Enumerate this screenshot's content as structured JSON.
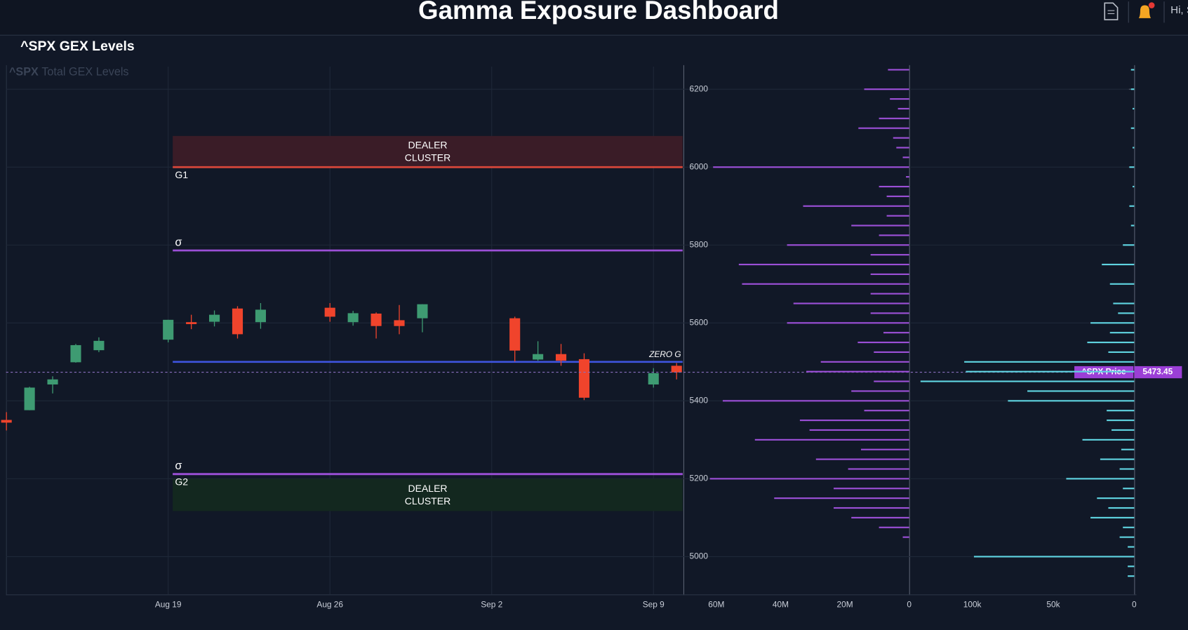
{
  "header": {
    "title": "Gamma Exposure Dashboard",
    "greeting": "Hi, S"
  },
  "panel_title": "^SPX GEX Levels",
  "chart_data": [
    {
      "type": "candlestick",
      "watermark": {
        "symbol": "^SPX",
        "text": "Total GEX Levels"
      },
      "x": [
        "Aug 12",
        "Aug 13",
        "Aug 14",
        "Aug 15",
        "Aug 16",
        "Aug 19",
        "Aug 20",
        "Aug 21",
        "Aug 22",
        "Aug 23",
        "Aug 26",
        "Aug 27",
        "Aug 28",
        "Aug 29",
        "Aug 30",
        "Sep 3",
        "Sep 4",
        "Sep 5",
        "Sep 6",
        "Sep 9",
        "Sep 10"
      ],
      "open": [
        5351,
        5376,
        5442,
        5499,
        5530,
        5557,
        5602,
        5603,
        5637,
        5602,
        5639,
        5602,
        5624,
        5607,
        5612,
        5612,
        5506,
        5520,
        5507,
        5442,
        5490
      ],
      "high": [
        5371,
        5436,
        5463,
        5546,
        5563,
        5608,
        5621,
        5632,
        5643,
        5651,
        5651,
        5631,
        5627,
        5646,
        5648,
        5616,
        5553,
        5546,
        5522,
        5484,
        5497
      ],
      "low": [
        5324,
        5376,
        5419,
        5498,
        5525,
        5550,
        5584,
        5591,
        5560,
        5585,
        5603,
        5593,
        5560,
        5571,
        5576,
        5501,
        5503,
        5490,
        5402,
        5434,
        5455
      ],
      "close": [
        5344,
        5434,
        5455,
        5543,
        5554,
        5608,
        5597,
        5621,
        5571,
        5634,
        5616,
        5625,
        5592,
        5592,
        5648,
        5529,
        5520,
        5503,
        5408,
        5471,
        5473
      ],
      "up_color": "#3e9b72",
      "down_color": "#f0442c",
      "xticks": [
        "Aug 19",
        "Aug 26",
        "Sep 2",
        "Sep 9"
      ],
      "ylim": [
        4903,
        6258
      ],
      "yticks": [
        5000,
        5200,
        5400,
        5600,
        5800,
        6000,
        6200
      ],
      "grid": true,
      "zones": [
        {
          "label": [
            "DEALER",
            "CLUSTER"
          ],
          "from": 6000,
          "to": 6080,
          "color": "#3a1c27"
        },
        {
          "label": [
            "DEALER",
            "CLUSTER"
          ],
          "from": 5117,
          "to": 5200,
          "color": "#13281f"
        }
      ],
      "levels": [
        {
          "label": "G1",
          "value": 6000,
          "color": "#d9473a",
          "label_side": "below"
        },
        {
          "label": "σ",
          "value": 5786,
          "color": "#9b4fd6",
          "label_side": "above"
        },
        {
          "label": "ZERO G",
          "value": 5500,
          "color": "#3f55e0",
          "label_side": "right"
        },
        {
          "label": "σ",
          "value": 5212,
          "color": "#9b4fd6",
          "label_side": "above"
        },
        {
          "label": "G2",
          "value": 5212,
          "color": "#9b4fd6",
          "label_side": "below"
        }
      ],
      "price": {
        "label": "^SPX Price",
        "value": 5473.45,
        "color": "#9b3fd6"
      }
    },
    {
      "type": "hbar",
      "color": "#9b4fd6",
      "y": [
        6250,
        6200,
        6175,
        6150,
        6125,
        6100,
        6075,
        6050,
        6025,
        6000,
        5975,
        5950,
        5925,
        5900,
        5875,
        5850,
        5825,
        5800,
        5775,
        5750,
        5725,
        5700,
        5675,
        5650,
        5625,
        5600,
        5575,
        5550,
        5525,
        5500,
        5475,
        5450,
        5425,
        5400,
        5375,
        5350,
        5325,
        5300,
        5275,
        5250,
        5225,
        5200,
        5175,
        5150,
        5125,
        5100,
        5075,
        5050
      ],
      "values": [
        6600000,
        14000000,
        6000000,
        3500000,
        9400000,
        15800000,
        5000000,
        4000000,
        2000000,
        61000000,
        1000000,
        9400000,
        7000000,
        33000000,
        7000000,
        18000000,
        9400000,
        38000000,
        12000000,
        53000000,
        12000000,
        52000000,
        12000000,
        36000000,
        12000000,
        38000000,
        8000000,
        16000000,
        11000000,
        27500000,
        32000000,
        11000000,
        18000000,
        58000000,
        14000000,
        34000000,
        31000000,
        48000000,
        15000000,
        29000000,
        19000000,
        62000000,
        23500000,
        42000000,
        23500000,
        18000000,
        9400000,
        2000000
      ],
      "xlim": [
        70000000,
        0
      ],
      "ylim": [
        4903,
        6258
      ],
      "xticks": [
        {
          "value": 60000000,
          "label": "60M"
        },
        {
          "value": 40000000,
          "label": "40M"
        },
        {
          "value": 20000000,
          "label": "20M"
        },
        0
      ]
    },
    {
      "type": "hbar",
      "color": "#5fd3e0",
      "y": [
        6250,
        6200,
        6150,
        6100,
        6050,
        6000,
        5950,
        5900,
        5850,
        5800,
        5750,
        5700,
        5650,
        5625,
        5600,
        5575,
        5550,
        5525,
        5500,
        5475,
        5450,
        5425,
        5400,
        5375,
        5350,
        5325,
        5300,
        5275,
        5250,
        5225,
        5200,
        5175,
        5150,
        5125,
        5100,
        5075,
        5050,
        5025,
        5000,
        4975,
        4950
      ],
      "values": [
        2000,
        2000,
        1000,
        2000,
        1000,
        3000,
        1000,
        3000,
        2000,
        7000,
        20000,
        15000,
        13000,
        10000,
        27000,
        15000,
        29000,
        16000,
        105000,
        104000,
        132000,
        66000,
        78000,
        17000,
        17000,
        14000,
        32000,
        8000,
        21000,
        9000,
        42000,
        7000,
        23000,
        16000,
        27000,
        7000,
        9000,
        4000,
        99000,
        4000,
        4000
      ],
      "xlim": [
        139000,
        0
      ],
      "ylim": [
        4903,
        6258
      ],
      "xticks": [
        {
          "value": 100000,
          "label": "100k"
        },
        {
          "value": 50000,
          "label": "50k"
        },
        0
      ]
    }
  ]
}
